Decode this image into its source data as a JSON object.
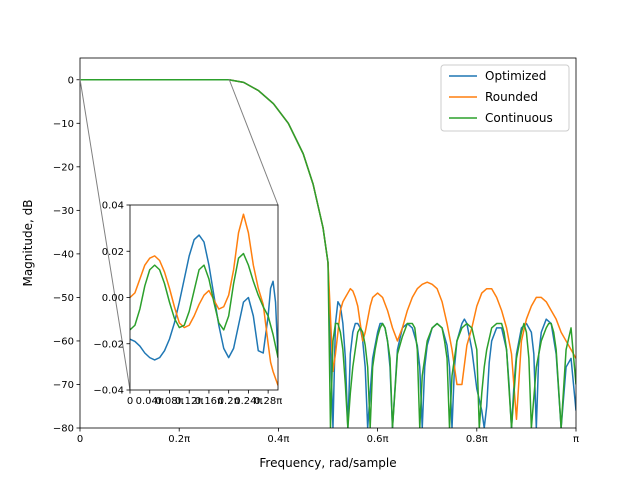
{
  "chart_data": {
    "type": "line",
    "xlabel": "Frequency, rad/sample",
    "ylabel": "Magnitude, dB",
    "xlim": [
      0,
      1
    ],
    "ylim": [
      -80,
      5
    ],
    "x_unit": "pi",
    "xticks": [
      0,
      0.2,
      0.4,
      0.6,
      0.8,
      1.0
    ],
    "xtick_labels": [
      "0",
      "0.2π",
      "0.4π",
      "0.6π",
      "0.8π",
      "π"
    ],
    "yticks": [
      0,
      -10,
      -20,
      -30,
      -40,
      -50,
      -60,
      -70,
      -80
    ],
    "ytick_labels": [
      "0",
      "−10",
      "−20",
      "−30",
      "−40",
      "−50",
      "−60",
      "−70",
      "−80"
    ],
    "legend_position": "top-right",
    "series": [
      {
        "name": "Optimized",
        "color": "#1f77b4",
        "x": [
          0,
          0.1,
          0.2,
          0.3,
          0.33,
          0.36,
          0.39,
          0.42,
          0.45,
          0.47,
          0.49,
          0.5,
          0.51,
          0.515,
          0.52,
          0.525,
          0.53,
          0.535,
          0.54,
          0.545,
          0.55,
          0.555,
          0.56,
          0.565,
          0.57,
          0.575,
          0.58,
          0.59,
          0.6,
          0.605,
          0.61,
          0.615,
          0.62,
          0.625,
          0.63,
          0.64,
          0.65,
          0.66,
          0.67,
          0.68,
          0.685,
          0.69,
          0.695,
          0.7,
          0.71,
          0.72,
          0.73,
          0.74,
          0.745,
          0.75,
          0.755,
          0.76,
          0.77,
          0.775,
          0.78,
          0.79,
          0.8,
          0.81,
          0.815,
          0.82,
          0.825,
          0.83,
          0.84,
          0.85,
          0.86,
          0.865,
          0.87,
          0.875,
          0.88,
          0.89,
          0.9,
          0.91,
          0.915,
          0.92,
          0.925,
          0.93,
          0.94,
          0.95,
          0.96,
          0.97,
          0.98,
          0.99,
          1.0
        ],
        "y": [
          0,
          0,
          0,
          0,
          -0.6,
          -2.5,
          -5.5,
          -10,
          -17,
          -24,
          -34,
          -42,
          -80,
          -56,
          -51,
          -52,
          -56,
          -64,
          -80,
          -63,
          -58,
          -56,
          -56,
          -57,
          -60,
          -66,
          -80,
          -64,
          -58,
          -56,
          -56,
          -57,
          -60,
          -66,
          -80,
          -62,
          -57,
          -56,
          -57,
          -61,
          -66,
          -80,
          -66,
          -61,
          -57,
          -56,
          -57,
          -61,
          -66,
          -80,
          -66,
          -60,
          -56,
          -55,
          -56,
          -62,
          -71,
          -76,
          -80,
          -75,
          -65,
          -60,
          -57,
          -57,
          -62,
          -70,
          -80,
          -70,
          -63,
          -57,
          -56,
          -58,
          -63,
          -80,
          -63,
          -58,
          -55,
          -56,
          -63,
          -80,
          -66,
          -64,
          -76
        ]
      },
      {
        "name": "Rounded",
        "color": "#ff7f0e",
        "x": [
          0,
          0.1,
          0.2,
          0.3,
          0.33,
          0.36,
          0.39,
          0.42,
          0.45,
          0.47,
          0.49,
          0.5,
          0.51,
          0.515,
          0.52,
          0.525,
          0.53,
          0.535,
          0.54,
          0.545,
          0.55,
          0.555,
          0.56,
          0.565,
          0.57,
          0.575,
          0.58,
          0.585,
          0.59,
          0.6,
          0.61,
          0.62,
          0.63,
          0.64,
          0.65,
          0.66,
          0.67,
          0.68,
          0.69,
          0.7,
          0.71,
          0.72,
          0.73,
          0.74,
          0.75,
          0.76,
          0.77,
          0.78,
          0.79,
          0.8,
          0.81,
          0.82,
          0.83,
          0.84,
          0.85,
          0.86,
          0.87,
          0.88,
          0.89,
          0.9,
          0.91,
          0.92,
          0.93,
          0.94,
          0.95,
          0.96,
          0.97,
          0.98,
          0.99,
          1.0
        ],
        "y": [
          0,
          0,
          0,
          0,
          -0.6,
          -2.5,
          -5.5,
          -10,
          -17,
          -24,
          -34,
          -42,
          -67,
          -63,
          -58,
          -53,
          -51,
          -50,
          -49,
          -48,
          -48.5,
          -50,
          -52,
          -56,
          -60,
          -58,
          -55,
          -52,
          -50,
          -49,
          -50,
          -53,
          -57,
          -60,
          -57,
          -53,
          -50,
          -48,
          -47,
          -46.5,
          -47,
          -48,
          -51,
          -56,
          -62,
          -70,
          -70,
          -61,
          -57,
          -52,
          -49,
          -48,
          -48,
          -50,
          -53,
          -57,
          -63,
          -78,
          -60,
          -55,
          -52,
          -50,
          -50,
          -51,
          -53,
          -55,
          -58,
          -60,
          -62,
          -64
        ]
      },
      {
        "name": "Continuous",
        "color": "#2ca02c",
        "x": [
          0,
          0.1,
          0.2,
          0.3,
          0.33,
          0.36,
          0.39,
          0.42,
          0.45,
          0.47,
          0.49,
          0.5,
          0.505,
          0.51,
          0.515,
          0.52,
          0.525,
          0.53,
          0.535,
          0.54,
          0.545,
          0.55,
          0.555,
          0.56,
          0.565,
          0.57,
          0.575,
          0.58,
          0.585,
          0.59,
          0.595,
          0.6,
          0.605,
          0.61,
          0.615,
          0.62,
          0.625,
          0.63,
          0.64,
          0.65,
          0.66,
          0.67,
          0.675,
          0.68,
          0.685,
          0.69,
          0.7,
          0.71,
          0.72,
          0.73,
          0.735,
          0.74,
          0.745,
          0.75,
          0.76,
          0.77,
          0.78,
          0.79,
          0.8,
          0.805,
          0.81,
          0.815,
          0.82,
          0.83,
          0.84,
          0.85,
          0.855,
          0.86,
          0.87,
          0.88,
          0.89,
          0.895,
          0.9,
          0.905,
          0.91,
          0.92,
          0.93,
          0.94,
          0.945,
          0.95,
          0.955,
          0.96,
          0.97,
          0.98,
          0.99,
          1.0
        ],
        "y": [
          0,
          0,
          0,
          0,
          -0.6,
          -2.5,
          -5.5,
          -10,
          -17,
          -24,
          -34,
          -42,
          -80,
          -60,
          -56,
          -56,
          -58,
          -62,
          -70,
          -80,
          -72,
          -66,
          -62,
          -58,
          -57,
          -58,
          -61,
          -66,
          -80,
          -66,
          -62,
          -59,
          -57,
          -56,
          -57,
          -60,
          -64,
          -80,
          -63,
          -59,
          -56,
          -56,
          -57,
          -62,
          -80,
          -68,
          -60,
          -57,
          -56,
          -57,
          -60,
          -64,
          -80,
          -68,
          -60,
          -57,
          -56,
          -57,
          -62,
          -80,
          -72,
          -66,
          -62,
          -57,
          -56,
          -56,
          -58,
          -62,
          -80,
          -64,
          -58,
          -56,
          -58,
          -64,
          -80,
          -66,
          -60,
          -57,
          -56,
          -56,
          -58,
          -62,
          -80,
          -62,
          -57,
          -70
        ]
      }
    ],
    "inset": {
      "xlim": [
        0,
        0.3
      ],
      "ylim": [
        -0.04,
        0.04
      ],
      "xticks": [
        0,
        0.04,
        0.08,
        0.12,
        0.16,
        0.2,
        0.24,
        0.28
      ],
      "xtick_labels": [
        "0",
        "0.04π",
        "0.08π",
        "0.12π",
        "0.16π",
        "0.2π",
        "0.24π",
        "0.28π"
      ],
      "yticks": [
        0.04,
        0.02,
        0.0,
        -0.02,
        -0.04
      ],
      "ytick_labels": [
        "0.04",
        "0.02",
        "0.00",
        "−0.02",
        "−0.04"
      ],
      "series": [
        {
          "name": "Optimized",
          "color": "#1f77b4",
          "x": [
            0,
            0.01,
            0.02,
            0.03,
            0.04,
            0.05,
            0.06,
            0.07,
            0.08,
            0.09,
            0.1,
            0.11,
            0.12,
            0.13,
            0.14,
            0.15,
            0.16,
            0.17,
            0.18,
            0.19,
            0.2,
            0.21,
            0.22,
            0.23,
            0.24,
            0.25,
            0.26,
            0.27,
            0.28,
            0.285,
            0.29,
            0.295,
            0.3
          ],
          "y": [
            -0.018,
            -0.019,
            -0.021,
            -0.024,
            -0.026,
            -0.027,
            -0.026,
            -0.023,
            -0.018,
            -0.011,
            -0.002,
            0.008,
            0.018,
            0.025,
            0.027,
            0.024,
            0.014,
            0.001,
            -0.012,
            -0.022,
            -0.026,
            -0.022,
            -0.012,
            -0.002,
            0.0,
            -0.008,
            -0.023,
            -0.024,
            -0.008,
            0.004,
            0.007,
            -0.002,
            -0.026
          ]
        },
        {
          "name": "Rounded",
          "color": "#ff7f0e",
          "x": [
            0,
            0.01,
            0.02,
            0.03,
            0.04,
            0.05,
            0.06,
            0.07,
            0.08,
            0.09,
            0.1,
            0.11,
            0.12,
            0.13,
            0.14,
            0.15,
            0.16,
            0.17,
            0.18,
            0.19,
            0.2,
            0.21,
            0.22,
            0.23,
            0.24,
            0.25,
            0.26,
            0.27,
            0.28,
            0.285,
            0.29,
            0.295,
            0.3
          ],
          "y": [
            0.0,
            0.002,
            0.008,
            0.014,
            0.017,
            0.018,
            0.016,
            0.011,
            0.004,
            -0.004,
            -0.011,
            -0.013,
            -0.012,
            -0.008,
            -0.003,
            0.001,
            0.003,
            -0.001,
            -0.005,
            -0.004,
            0.001,
            0.012,
            0.028,
            0.036,
            0.028,
            0.014,
            0.004,
            -0.003,
            -0.02,
            -0.028,
            -0.032,
            -0.035,
            -0.038
          ]
        },
        {
          "name": "Continuous",
          "color": "#2ca02c",
          "x": [
            0,
            0.01,
            0.02,
            0.03,
            0.04,
            0.05,
            0.06,
            0.07,
            0.08,
            0.09,
            0.1,
            0.11,
            0.12,
            0.13,
            0.14,
            0.15,
            0.16,
            0.17,
            0.18,
            0.19,
            0.2,
            0.21,
            0.22,
            0.23,
            0.24,
            0.25,
            0.26,
            0.27,
            0.28,
            0.285,
            0.29,
            0.295,
            0.3
          ],
          "y": [
            -0.014,
            -0.012,
            -0.005,
            0.005,
            0.012,
            0.014,
            0.012,
            0.006,
            -0.002,
            -0.009,
            -0.013,
            -0.012,
            -0.006,
            0.003,
            0.012,
            0.014,
            0.008,
            -0.002,
            -0.011,
            -0.014,
            -0.008,
            0.006,
            0.017,
            0.019,
            0.014,
            0.007,
            0.001,
            -0.004,
            -0.008,
            -0.012,
            -0.016,
            -0.021,
            -0.026
          ]
        }
      ]
    }
  }
}
